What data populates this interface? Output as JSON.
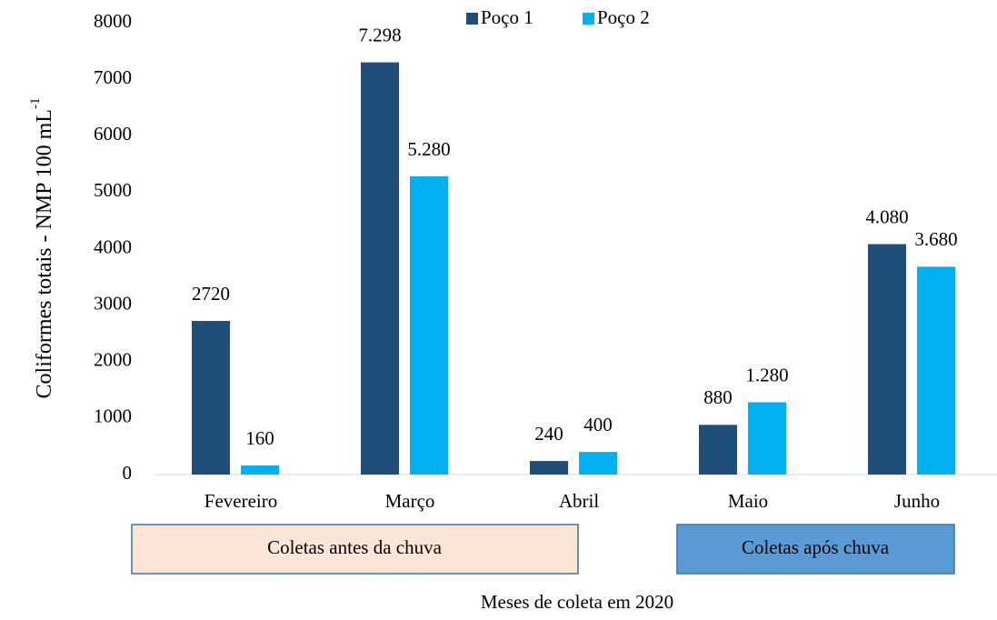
{
  "chart_data": {
    "type": "bar",
    "ylabel": "Coliformes totais - NMP 100 mL",
    "ylabel_superscript": "-1",
    "xlabel": "Meses de coleta em 2020",
    "categories": [
      "Fevereiro",
      "Março",
      "Abril",
      "Maio",
      "Junho"
    ],
    "series": [
      {
        "name": "Poço 1",
        "color": "#1f4e79",
        "values": [
          2720,
          7298,
          240,
          880,
          4080
        ],
        "value_labels": [
          "2720",
          "7.298",
          "240",
          "880",
          "4.080"
        ]
      },
      {
        "name": "Poço 2",
        "color": "#00b0f0",
        "values": [
          160,
          5280,
          400,
          1280,
          3680
        ],
        "value_labels": [
          "160",
          "5.280",
          "400",
          "1.280",
          "3.680"
        ]
      }
    ],
    "ylim": [
      0,
      8000
    ],
    "yticks": [
      0,
      1000,
      2000,
      3000,
      4000,
      5000,
      6000,
      7000,
      8000
    ],
    "grid": false,
    "legend": "top",
    "annotations": [
      {
        "text": "Coletas antes da chuva",
        "color": "#fbe5d6"
      },
      {
        "text": "Coletas após chuva",
        "color": "#5b9bd5"
      }
    ]
  }
}
